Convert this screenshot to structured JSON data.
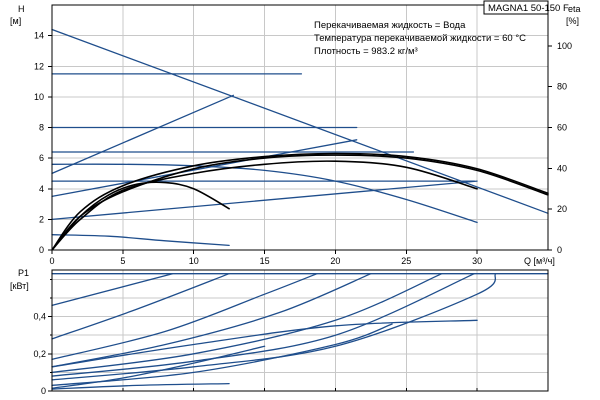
{
  "chart_data": [
    {
      "type": "line",
      "panel": "head",
      "title": "MAGNA1 50-150 F",
      "annotations": [
        "Перекачиваемая жидкость = Вода",
        "Температура перекачиваемой жидкости = 60 °C",
        "Плотность = 983.2 кг/м³"
      ],
      "xlabel": "Q [м³/ч]",
      "ylabel": "H [м]",
      "y2label": "eta [%]",
      "xlim": [
        0,
        35
      ],
      "ylim": [
        0,
        16
      ],
      "y2lim": [
        0,
        120
      ],
      "x_ticks": [
        0,
        5,
        10,
        15,
        20,
        25,
        30
      ],
      "y_ticks": [
        0,
        2,
        4,
        6,
        8,
        10,
        12,
        14
      ],
      "y_tick_labels": [
        "0",
        "2",
        "4",
        "6",
        "8",
        "10",
        "12",
        "14"
      ],
      "y2_ticks": [
        0,
        20,
        40,
        60,
        80,
        100
      ],
      "grid": true,
      "series": [
        {
          "group": "head_max",
          "color": "#1f4e8c",
          "x": [
            0,
            35
          ],
          "y": [
            14.4,
            2.4
          ]
        },
        {
          "group": "const_pressure_setting",
          "color": "#1f4e8c",
          "x": [
            0,
            17.6
          ],
          "y": [
            11.5,
            11.5
          ]
        },
        {
          "group": "const_pressure_setting",
          "color": "#1f4e8c",
          "x": [
            0,
            21.5
          ],
          "y": [
            8.0,
            8.0
          ]
        },
        {
          "group": "const_pressure_setting",
          "color": "#1f4e8c",
          "x": [
            0,
            25.5
          ],
          "y": [
            6.4,
            6.4
          ]
        },
        {
          "group": "const_pressure_setting",
          "color": "#1f4e8c",
          "x": [
            0,
            29.8
          ],
          "y": [
            4.5,
            4.5
          ]
        },
        {
          "group": "prop_pressure_setting",
          "color": "#1f4e8c",
          "x": [
            0,
            12.8
          ],
          "y": [
            5.0,
            10.1
          ]
        },
        {
          "group": "prop_pressure_setting",
          "color": "#1f4e8c",
          "x": [
            0,
            21.5
          ],
          "y": [
            3.5,
            7.2
          ]
        },
        {
          "group": "prop_pressure_setting",
          "color": "#1f4e8c",
          "x": [
            0,
            30
          ],
          "y": [
            2.0,
            4.5
          ]
        },
        {
          "group": "const_curve_setting",
          "color": "#1f4e8c",
          "x": [
            0,
            5,
            10,
            15,
            20,
            25,
            30
          ],
          "y": [
            5.6,
            5.6,
            5.5,
            5.2,
            4.5,
            3.3,
            1.8
          ]
        },
        {
          "group": "const_curve_setting",
          "color": "#1f4e8c",
          "x": [
            0,
            4,
            8,
            12.5
          ],
          "y": [
            1.0,
            0.9,
            0.6,
            0.3
          ]
        },
        {
          "group": "efficiency",
          "color": "#000000",
          "x": [
            0,
            2,
            5,
            10,
            15,
            20,
            25,
            30,
            35
          ],
          "y": [
            0,
            2.2,
            3.8,
            5.3,
            6.0,
            6.2,
            6.0,
            5.2,
            3.6
          ]
        },
        {
          "group": "efficiency",
          "color": "#000000",
          "x": [
            0,
            2,
            5,
            10,
            15,
            20,
            25,
            30,
            35
          ],
          "y": [
            0,
            2.5,
            4.2,
            5.5,
            6.1,
            6.3,
            6.1,
            5.3,
            3.7
          ]
        },
        {
          "group": "efficiency",
          "color": "#000000",
          "x": [
            0,
            2,
            5,
            10,
            15,
            20,
            25,
            30
          ],
          "y": [
            0,
            2.0,
            3.9,
            5.0,
            5.6,
            5.8,
            5.4,
            4.0
          ]
        },
        {
          "group": "efficiency",
          "color": "#000000",
          "x": [
            0,
            2,
            4,
            6,
            8,
            10,
            12.5
          ],
          "y": [
            0,
            2.2,
            3.6,
            4.3,
            4.4,
            4.0,
            2.7
          ]
        }
      ]
    },
    {
      "type": "line",
      "panel": "power",
      "ylabel": "P1 [кВт]",
      "xlim": [
        0,
        35
      ],
      "ylim": [
        0,
        0.65
      ],
      "y_ticks": [
        0,
        0.2,
        0.4
      ],
      "y_tick_labels": [
        "0",
        "0,2",
        "0,4"
      ],
      "y_grid": [
        0,
        0.1,
        0.2,
        0.3,
        0.4,
        0.5,
        0.6
      ],
      "grid": true,
      "series": [
        {
          "color": "#1f4e8c",
          "x": [
            0,
            35
          ],
          "y": [
            0.63,
            0.63
          ]
        },
        {
          "color": "#1f4e8c",
          "x": [
            0,
            8.5
          ],
          "y": [
            0.46,
            0.63
          ]
        },
        {
          "color": "#1f4e8c",
          "x": [
            0,
            6,
            12.5
          ],
          "y": [
            0.28,
            0.44,
            0.63
          ]
        },
        {
          "color": "#1f4e8c",
          "x": [
            0,
            8,
            15,
            18.7
          ],
          "y": [
            0.17,
            0.32,
            0.52,
            0.63
          ]
        },
        {
          "color": "#1f4e8c",
          "x": [
            0,
            8,
            16,
            22.5
          ],
          "y": [
            0.13,
            0.25,
            0.42,
            0.63
          ]
        },
        {
          "color": "#1f4e8c",
          "x": [
            0,
            10,
            20,
            27.5
          ],
          "y": [
            0.1,
            0.2,
            0.38,
            0.63
          ]
        },
        {
          "color": "#1f4e8c",
          "x": [
            0,
            10,
            20,
            29.8
          ],
          "y": [
            0.08,
            0.16,
            0.3,
            0.63
          ]
        },
        {
          "color": "#1f4e8c",
          "x": [
            0,
            10,
            20,
            30,
            31.3
          ],
          "y": [
            0.06,
            0.13,
            0.24,
            0.52,
            0.63
          ]
        },
        {
          "color": "#1f4e8c",
          "x": [
            0,
            10,
            20,
            30
          ],
          "y": [
            0.13,
            0.25,
            0.35,
            0.38
          ]
        },
        {
          "color": "#1f4e8c",
          "x": [
            0,
            10,
            20,
            24
          ],
          "y": [
            0.03,
            0.1,
            0.25,
            0.36
          ]
        },
        {
          "color": "#1f4e8c",
          "x": [
            0,
            5,
            10,
            15
          ],
          "y": [
            0.015,
            0.07,
            0.15,
            0.24
          ]
        },
        {
          "color": "#1f4e8c",
          "x": [
            0,
            6,
            12.5
          ],
          "y": [
            0.01,
            0.03,
            0.04
          ]
        }
      ]
    }
  ]
}
